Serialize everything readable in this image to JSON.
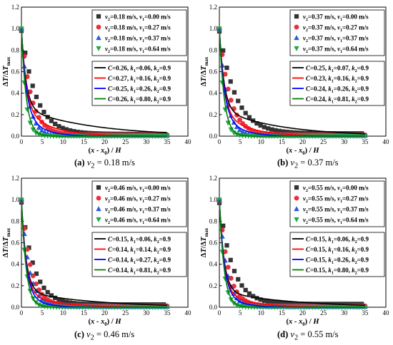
{
  "figure": {
    "captions": [
      {
        "letter": "(a)",
        "text": "= 0.18 m/s"
      },
      {
        "letter": "(b)",
        "text": "= 0.37 m/s"
      },
      {
        "letter": "(c)",
        "text": "= 0.46 m/s"
      },
      {
        "letter": "(d)",
        "text": "= 0.55 m/s"
      }
    ],
    "caption_var": "v",
    "caption_sub": "2"
  },
  "colors": {
    "black": "#333333",
    "red": "#e8313a",
    "blue": "#2a5ad6",
    "green": "#1fa84a",
    "fit_black": "#000000",
    "fit_red": "#ff0000",
    "fit_blue": "#0000ff",
    "fit_green": "#008000"
  },
  "chart_data": [
    {
      "type": "scatter",
      "panel": "a",
      "xlabel": "(x - x0) / H",
      "ylabel": "ΔT/ΔTmax",
      "xlim": [
        0,
        40
      ],
      "ylim": [
        0,
        1.2
      ],
      "xticks": [
        0,
        5,
        10,
        15,
        20,
        25,
        30,
        35,
        40
      ],
      "yticks": [
        0.0,
        0.2,
        0.4,
        0.6,
        0.8,
        1.0,
        1.2
      ],
      "series": [
        {
          "name": "v2=0.18 m/s, v1=0.00 m/s",
          "marker": "square",
          "color_key": "black",
          "decay": 0.29,
          "floor": 0.02
        },
        {
          "name": "v2=0.18 m/s, v1=0.27 m/s",
          "marker": "circle",
          "color_key": "red",
          "decay": 0.43,
          "floor": 0.012
        },
        {
          "name": "v2=0.18 m/s, v1=0.37 m/s",
          "marker": "triangle-up",
          "color_key": "blue",
          "decay": 0.62,
          "floor": 0.006
        },
        {
          "name": "v2=0.18 m/s, v1=0.64 m/s",
          "marker": "triangle-down",
          "color_key": "green",
          "decay": 1.0,
          "floor": 0.0
        }
      ],
      "fits": [
        {
          "label": "C=0.26, k1=0.06, k2=0.9",
          "C": 0.26,
          "k1": 0.06,
          "k2": 0.9,
          "color_key": "fit_black"
        },
        {
          "label": "C=0.27, k1=0.16, k2=0.9",
          "C": 0.27,
          "k1": 0.16,
          "k2": 0.9,
          "color_key": "fit_red"
        },
        {
          "label": "C=0.25, k1=0.26, k2=0.9",
          "C": 0.25,
          "k1": 0.26,
          "k2": 0.9,
          "color_key": "fit_blue"
        },
        {
          "label": "C=0.26, k1=0.80, k2=0.9",
          "C": 0.26,
          "k1": 0.8,
          "k2": 0.9,
          "color_key": "fit_green"
        }
      ]
    },
    {
      "type": "scatter",
      "panel": "b",
      "xlabel": "(x - x0) / H",
      "ylabel": "ΔT/ΔTmax",
      "xlim": [
        0,
        40
      ],
      "ylim": [
        0,
        1.2
      ],
      "xticks": [
        0,
        5,
        10,
        15,
        20,
        25,
        30,
        35,
        40
      ],
      "yticks": [
        0.0,
        0.2,
        0.4,
        0.6,
        0.8,
        1.0,
        1.2
      ],
      "series": [
        {
          "name": "v2=0.37 m/s, v1=0.00 m/s",
          "marker": "square",
          "color_key": "black",
          "decay": 0.26,
          "floor": 0.025
        },
        {
          "name": "v2=0.37 m/s, v1=0.27 m/s",
          "marker": "circle",
          "color_key": "red",
          "decay": 0.4,
          "floor": 0.012
        },
        {
          "name": "v2=0.37 m/s, v1=0.37 m/s",
          "marker": "triangle-up",
          "color_key": "blue",
          "decay": 0.6,
          "floor": 0.006
        },
        {
          "name": "v2=0.37 m/s, v1=0.64 m/s",
          "marker": "triangle-down",
          "color_key": "green",
          "decay": 1.0,
          "floor": 0.0
        }
      ],
      "fits": [
        {
          "label": "C=0.25, k1=0.07, k2=0.9",
          "C": 0.25,
          "k1": 0.07,
          "k2": 0.9,
          "color_key": "fit_black"
        },
        {
          "label": "C=0.23, k1=0.16, k2=0.9",
          "C": 0.23,
          "k1": 0.16,
          "k2": 0.9,
          "color_key": "fit_red"
        },
        {
          "label": "C=0.24, k1=0.26, k2=0.9",
          "C": 0.24,
          "k1": 0.26,
          "k2": 0.9,
          "color_key": "fit_blue"
        },
        {
          "label": "C=0.24, k1=0.81, k2=0.9",
          "C": 0.24,
          "k1": 0.81,
          "k2": 0.9,
          "color_key": "fit_green"
        }
      ]
    },
    {
      "type": "scatter",
      "panel": "c",
      "xlabel": "(x - x0) / H",
      "ylabel": "ΔT/ΔTmax",
      "xlim": [
        0,
        40
      ],
      "ylim": [
        0,
        1.2
      ],
      "xticks": [
        0,
        5,
        10,
        15,
        20,
        25,
        30,
        35,
        40
      ],
      "yticks": [
        0.0,
        0.2,
        0.4,
        0.6,
        0.8,
        1.0,
        1.2
      ],
      "series": [
        {
          "name": "v2=0.46 m/s, v1=0.00 m/s",
          "marker": "square",
          "color_key": "black",
          "decay": 0.34,
          "floor": 0.025
        },
        {
          "name": "v2=0.46 m/s, v1=0.27 m/s",
          "marker": "circle",
          "color_key": "red",
          "decay": 0.45,
          "floor": 0.012
        },
        {
          "name": "v2=0.46 m/s, v1=0.37 m/s",
          "marker": "triangle-up",
          "color_key": "blue",
          "decay": 0.55,
          "floor": 0.006
        },
        {
          "name": "v2=0.46 m/s, v1=0.64 m/s",
          "marker": "triangle-down",
          "color_key": "green",
          "decay": 0.9,
          "floor": 0.0
        }
      ],
      "fits": [
        {
          "label": "C=0.15, k1=0.06, k2=0.9",
          "C": 0.15,
          "k1": 0.06,
          "k2": 0.9,
          "color_key": "fit_black"
        },
        {
          "label": "C=0.14, k1=0.14, k2=0.9",
          "C": 0.14,
          "k1": 0.14,
          "k2": 0.9,
          "color_key": "fit_red"
        },
        {
          "label": "C=0.14, k1=0.27, k2=0.9",
          "C": 0.14,
          "k1": 0.27,
          "k2": 0.9,
          "color_key": "fit_blue"
        },
        {
          "label": "C=0.14, k1=0.81, k2=0.9",
          "C": 0.14,
          "k1": 0.81,
          "k2": 0.9,
          "color_key": "fit_green"
        }
      ]
    },
    {
      "type": "scatter",
      "panel": "d",
      "xlabel": "(x - x0) / H",
      "ylabel": "ΔT/ΔTmax",
      "xlim": [
        0,
        40
      ],
      "ylim": [
        0,
        1.2
      ],
      "xticks": [
        0,
        5,
        10,
        15,
        20,
        25,
        30,
        35,
        40
      ],
      "yticks": [
        0.0,
        0.2,
        0.4,
        0.6,
        0.8,
        1.0,
        1.2
      ],
      "series": [
        {
          "name": "v2=0.55 m/s, v1=0.00 m/s",
          "marker": "square",
          "color_key": "black",
          "decay": 0.32,
          "floor": 0.03
        },
        {
          "name": "v2=0.55 m/s, v1=0.27 m/s",
          "marker": "circle",
          "color_key": "red",
          "decay": 0.48,
          "floor": 0.012
        },
        {
          "name": "v2=0.55 m/s, v1=0.37 m/s",
          "marker": "triangle-up",
          "color_key": "blue",
          "decay": 0.6,
          "floor": 0.006
        },
        {
          "name": "v2=0.55 m/s, v1=0.64 m/s",
          "marker": "triangle-down",
          "color_key": "green",
          "decay": 0.95,
          "floor": 0.0
        }
      ],
      "fits": [
        {
          "label": "C=0.15, k1=0.06, k2=0.9",
          "C": 0.15,
          "k1": 0.06,
          "k2": 0.9,
          "color_key": "fit_black"
        },
        {
          "label": "C=0.15, k1=0.16, k2=0.9",
          "C": 0.15,
          "k1": 0.16,
          "k2": 0.9,
          "color_key": "fit_red"
        },
        {
          "label": "C=0.15, k1=0.26, k2=0.9",
          "C": 0.15,
          "k1": 0.26,
          "k2": 0.9,
          "color_key": "fit_blue"
        },
        {
          "label": "C=0.15, k1=0.80, k2=0.9",
          "C": 0.15,
          "k1": 0.8,
          "k2": 0.9,
          "color_key": "fit_green"
        }
      ]
    }
  ]
}
